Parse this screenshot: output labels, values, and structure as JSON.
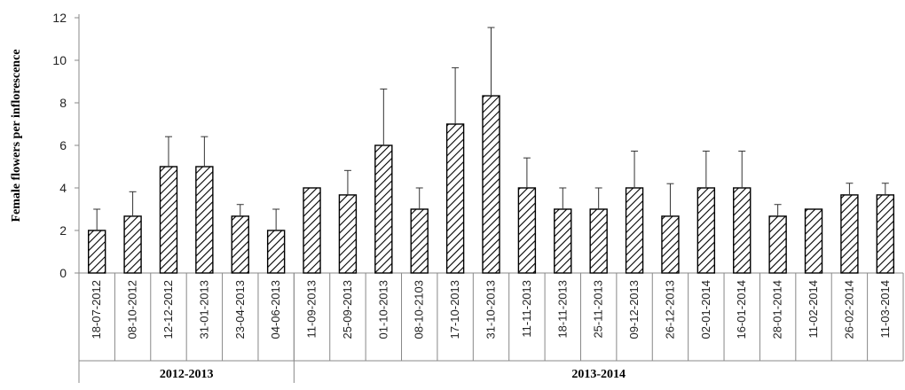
{
  "chart_data": {
    "type": "bar",
    "ylabel": "Female flowers per inflorescence",
    "xlabel": "",
    "ylim": [
      0,
      12
    ],
    "yticks": [
      "0",
      "2",
      "4",
      "6",
      "8",
      "10",
      "12"
    ],
    "grid": false,
    "categories": [
      "18-07-2012",
      "08-10-2012",
      "12-12-2012",
      "31-01-2013",
      "23-04-2013",
      "04-06-2013",
      "11-09-2013",
      "25-09-2013",
      "01-10-2013",
      "08-10-2103",
      "17-10-2013",
      "31-10-2013",
      "11-11-2013",
      "18-11-2013",
      "25-11-2013",
      "09-12-2013",
      "26-12-2013",
      "02-01-2014",
      "16-01-2014",
      "28-01-2014",
      "11-02-2014",
      "26-02-2014",
      "11-03-2014"
    ],
    "values": [
      2,
      2.67,
      5,
      5,
      2.67,
      2,
      4,
      3.67,
      6,
      3,
      7,
      8.33,
      4,
      3,
      3,
      4,
      2.67,
      4,
      4,
      2.67,
      3,
      3.67,
      3.67
    ],
    "error_upper": [
      1,
      1.15,
      1.41,
      1.41,
      0.55,
      1,
      0,
      1.15,
      2.65,
      1,
      2.65,
      3.21,
      1.41,
      1,
      1,
      1.73,
      1.53,
      1.73,
      1.73,
      0.55,
      0,
      0.55,
      0.55
    ],
    "groups": [
      {
        "label": "2012-2013",
        "count": 6
      },
      {
        "label": "2013-2014",
        "count": 17
      }
    ],
    "bar_fill": "hatched"
  }
}
